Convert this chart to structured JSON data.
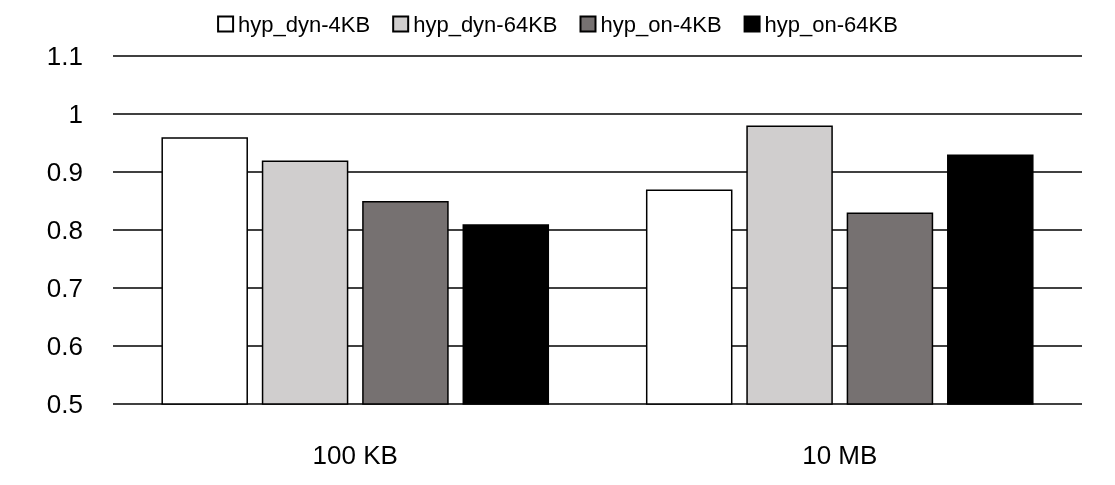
{
  "chart_data": {
    "type": "bar",
    "categories": [
      "100 KB",
      "10 MB"
    ],
    "series": [
      {
        "name": "hyp_dyn-4KB",
        "color": "#ffffff",
        "values": [
          0.96,
          0.87
        ]
      },
      {
        "name": "hyp_dyn-64KB",
        "color": "#d0cece",
        "values": [
          0.92,
          0.98
        ]
      },
      {
        "name": "hyp_on-4KB",
        "color": "#767171",
        "values": [
          0.85,
          0.83
        ]
      },
      {
        "name": "hyp_on-64KB",
        "color": "#000000",
        "values": [
          0.81,
          0.93
        ]
      }
    ],
    "ylim": [
      0.5,
      1.1
    ],
    "yticks": [
      0.5,
      0.6,
      0.7,
      0.8,
      0.9,
      1,
      1.1
    ],
    "grid": "y",
    "legend": "top"
  }
}
